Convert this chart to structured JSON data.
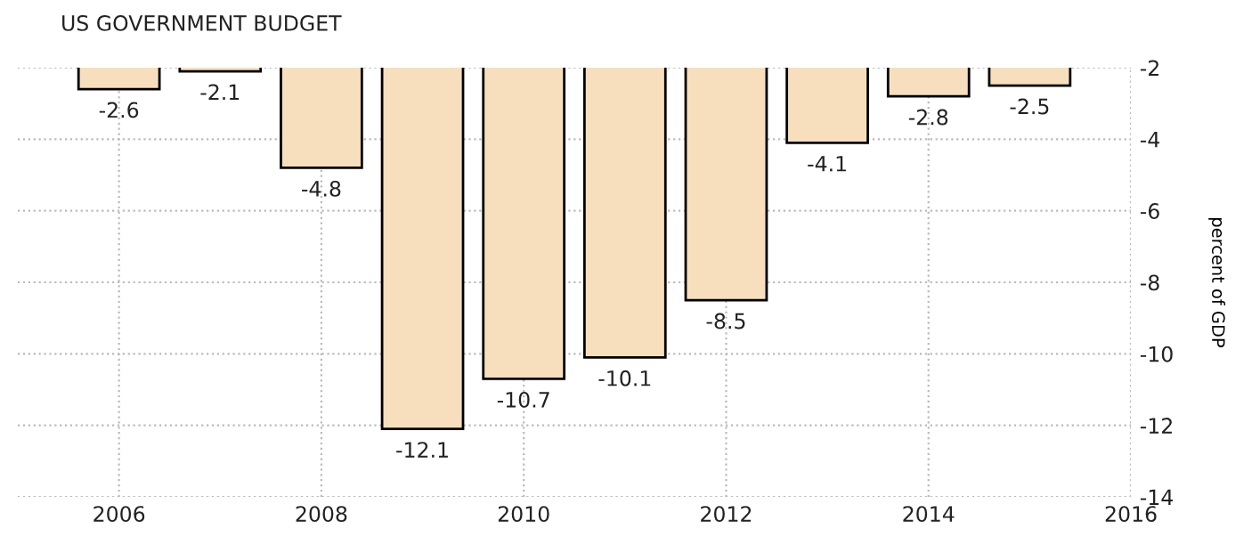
{
  "chart_data": {
    "type": "bar",
    "title": "US GOVERNMENT BUDGET",
    "ylabel": "percent of GDP",
    "x": [
      2006,
      2007,
      2008,
      2009,
      2010,
      2011,
      2012,
      2013,
      2014,
      2015
    ],
    "values": [
      -2.6,
      -2.1,
      -4.8,
      -12.1,
      -10.7,
      -10.1,
      -8.5,
      -4.1,
      -2.8,
      -2.5
    ],
    "color": "#f7dfbd",
    "data_labels": true,
    "xlim": [
      2005,
      2016
    ],
    "xticks": [
      2006,
      2008,
      2010,
      2012,
      2014,
      2016
    ],
    "ylim": [
      -14,
      -2
    ],
    "yticks": [
      -14,
      -12,
      -10,
      -8,
      -6,
      -4,
      -2
    ],
    "grid": true
  }
}
